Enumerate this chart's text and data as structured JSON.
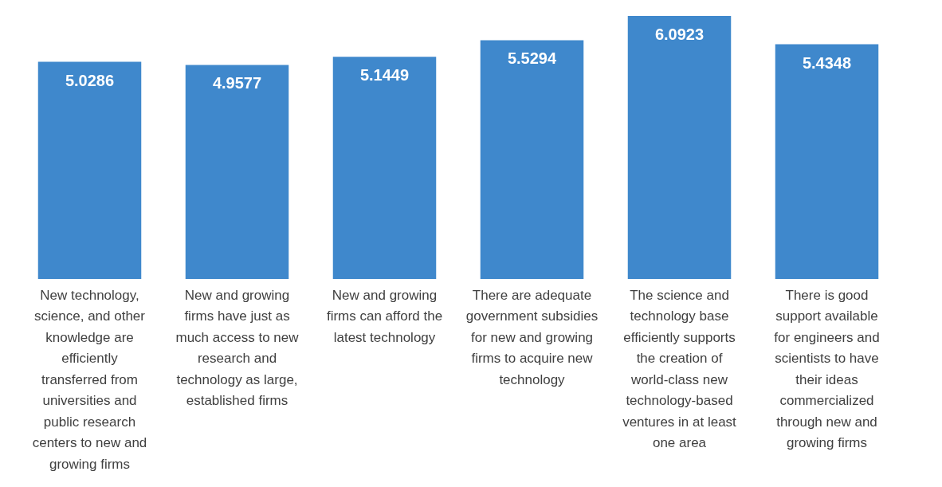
{
  "chart_data": {
    "type": "bar",
    "categories": [
      "New technology, science, and other knowledge are efficiently transferred from universities and public research centers to new and growing firms",
      "New and growing firms have just as much access to new research and technology as large, established firms",
      "New and growing firms can afford the latest technology",
      "There are adequate government subsidies for new and growing firms to acquire new technology",
      "The science and technology base efficiently supports the creation of world-class new technology-based ventures in at least one area",
      "There is good support available for engineers and scientists to have their ideas commercialized through new and growing firms"
    ],
    "values": [
      5.0286,
      4.9577,
      5.1449,
      5.5294,
      6.0923,
      5.4348
    ],
    "color": "#3f88cc",
    "data_labels": true
  }
}
